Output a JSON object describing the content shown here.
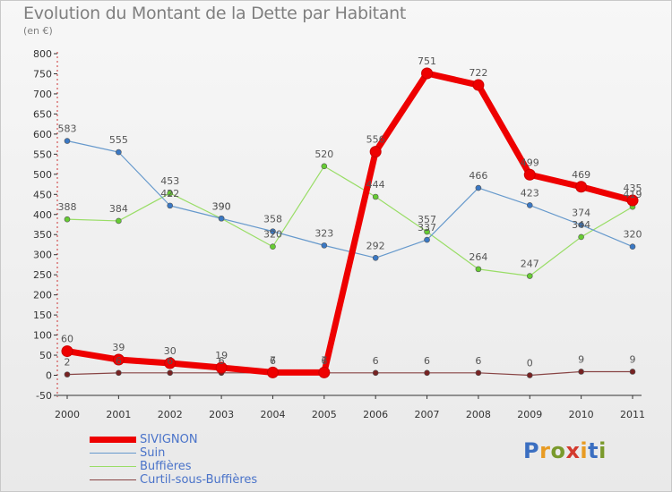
{
  "title": "Evolution du Montant de la Dette par Habitant",
  "unit": "(en €)",
  "brand": {
    "text": "Proxiti",
    "colors": [
      "#3b6fc1",
      "#e89b23",
      "#7a9a2c",
      "#d33a2e",
      "#e89b23",
      "#3b6fc1",
      "#7a9a2c"
    ]
  },
  "chart_data": {
    "type": "line",
    "x": [
      "2000",
      "2001",
      "2002",
      "2003",
      "2004",
      "2005",
      "2006",
      "2007",
      "2008",
      "2009",
      "2010",
      "2011"
    ],
    "ylim": [
      -50,
      800
    ],
    "yticks": [
      -50,
      0,
      50,
      100,
      150,
      200,
      250,
      300,
      350,
      400,
      450,
      500,
      550,
      600,
      650,
      700,
      750,
      800
    ],
    "grid": false,
    "legend_position": "bottom-left",
    "series": [
      {
        "name": "SIVIGNON",
        "color": "#ee0000",
        "width": 7,
        "markerFill": "#ee0000",
        "values": [
          60,
          39,
          30,
          19,
          7,
          7,
          556,
          751,
          722,
          499,
          469,
          435
        ],
        "labels": [
          "60",
          "39",
          "30",
          "19",
          "7",
          "7",
          "556",
          "751",
          "722",
          "499",
          "469",
          "435"
        ]
      },
      {
        "name": "Suin",
        "color": "#6699cc",
        "width": 1.2,
        "markerFill": "#3a78c4",
        "values": [
          583,
          555,
          422,
          390,
          358,
          323,
          292,
          337,
          466,
          423,
          374,
          320
        ],
        "labels": [
          "583",
          "555",
          "422",
          "390",
          "358",
          "323",
          "292",
          "337",
          "466",
          "423",
          "374",
          "320"
        ]
      },
      {
        "name": "Buffières",
        "color": "#99dd66",
        "width": 1.2,
        "markerFill": "#66cc33",
        "values": [
          388,
          384,
          453,
          390,
          320,
          520,
          444,
          357,
          264,
          247,
          344,
          419
        ],
        "labels": [
          "388",
          "384",
          "453",
          "390",
          "320",
          "520",
          "444",
          "357",
          "264",
          "247",
          "344",
          "419"
        ]
      },
      {
        "name": "Curtil-sous-Buffières",
        "color": "#884444",
        "width": 1.2,
        "markerFill": "#772222",
        "values": [
          2,
          6,
          6,
          6,
          6,
          6,
          6,
          6,
          6,
          0,
          9,
          9
        ],
        "labels": [
          "2",
          "6",
          "6",
          "6",
          "6",
          "6",
          "6",
          "6",
          "6",
          "0",
          "9",
          "9"
        ]
      }
    ]
  }
}
